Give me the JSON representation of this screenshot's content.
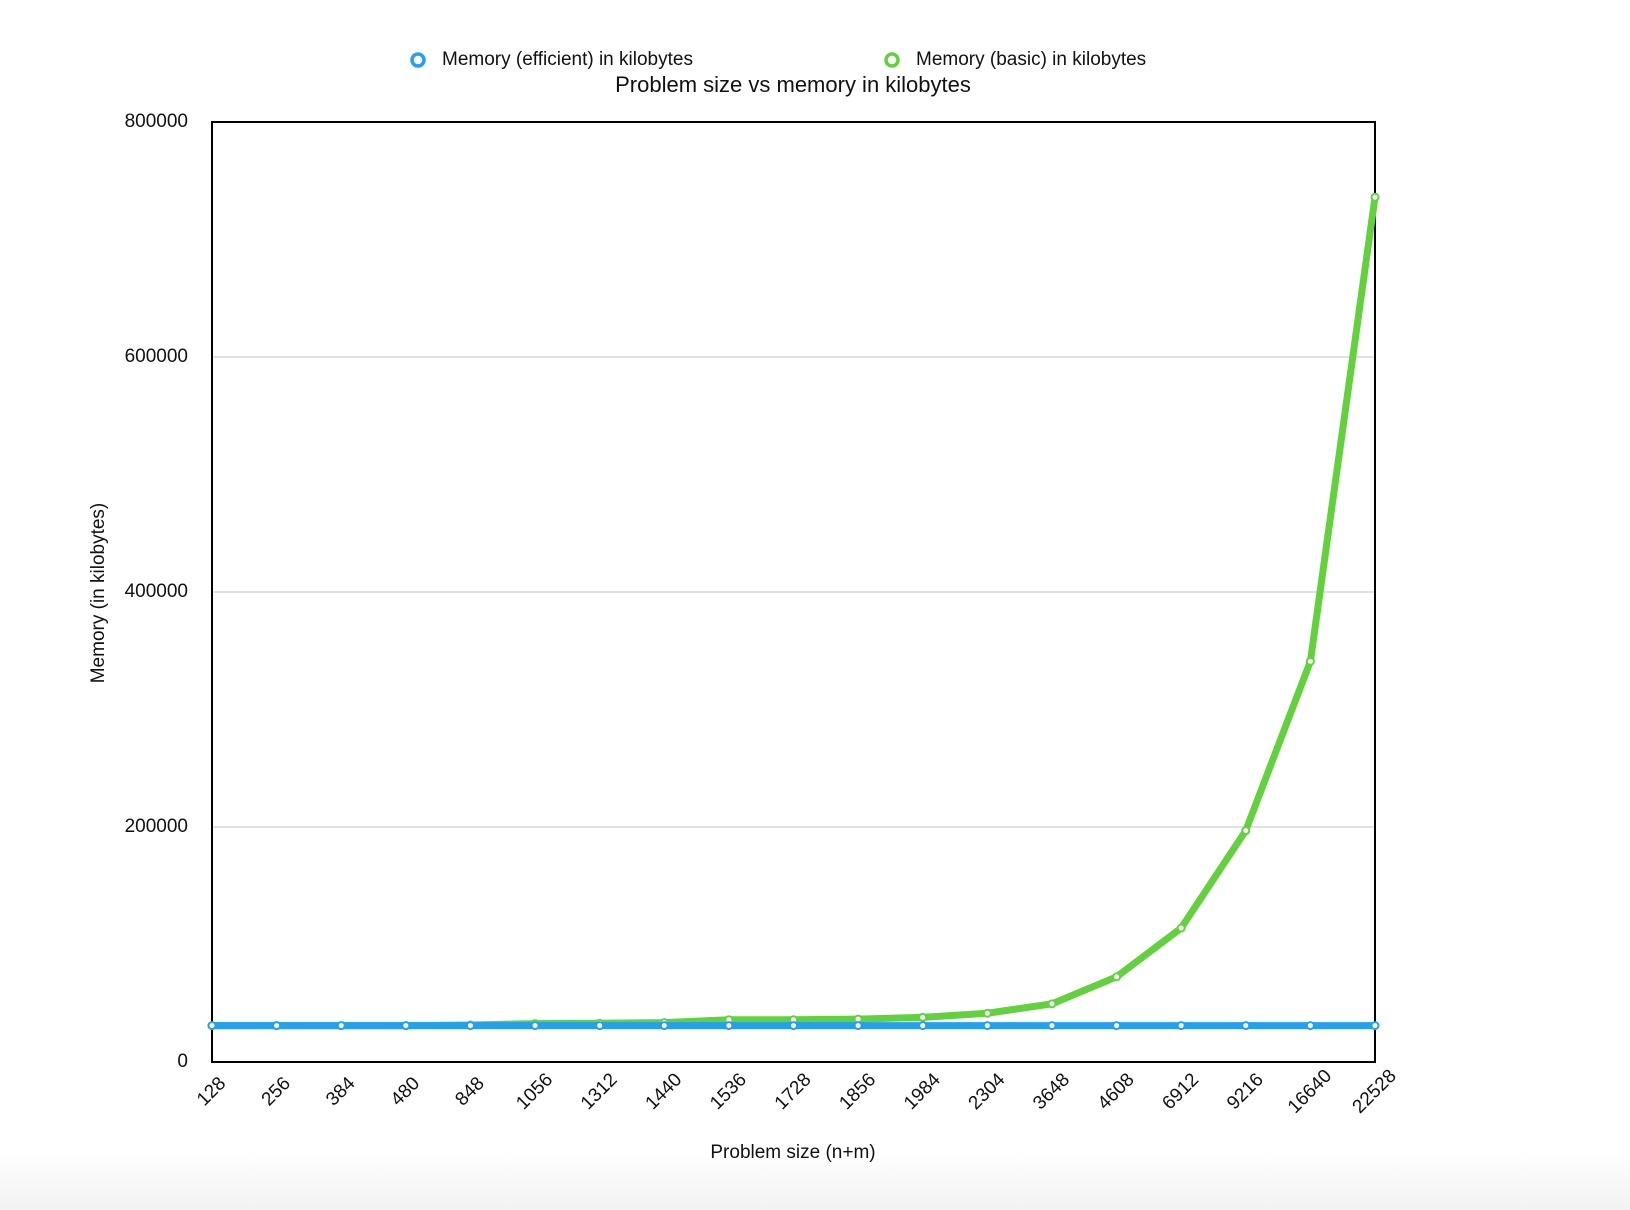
{
  "chart_data": {
    "type": "line",
    "title": "Problem size vs memory in kilobytes",
    "x_label": "Problem size (n+m)",
    "y_label": "Memory (in kilobytes)",
    "categories": [
      "128",
      "256",
      "384",
      "480",
      "848",
      "1056",
      "1312",
      "1440",
      "1536",
      "1728",
      "1856",
      "1984",
      "2304",
      "3648",
      "4608",
      "6912",
      "9216",
      "16640",
      "22528"
    ],
    "series": [
      {
        "name": "Memory (efficient) in kilobytes",
        "color": "#259ff0",
        "values": [
          31000,
          31000,
          31000,
          31000,
          31000,
          31000,
          31000,
          31000,
          31000,
          31000,
          31000,
          31000,
          31000,
          31000,
          31000,
          31000,
          31000,
          31000,
          31000
        ]
      },
      {
        "name": "Memory (basic) in kilobytes",
        "color": "#63d13e",
        "values": [
          31000,
          31000,
          31000,
          31000,
          31500,
          32700,
          33000,
          33500,
          36000,
          36000,
          36500,
          38000,
          41500,
          49500,
          72500,
          114000,
          197000,
          341000,
          736000
        ]
      }
    ],
    "ylim": [
      0,
      800000
    ],
    "yticks": [
      0,
      200000,
      400000,
      600000,
      800000
    ],
    "grid": true
  }
}
